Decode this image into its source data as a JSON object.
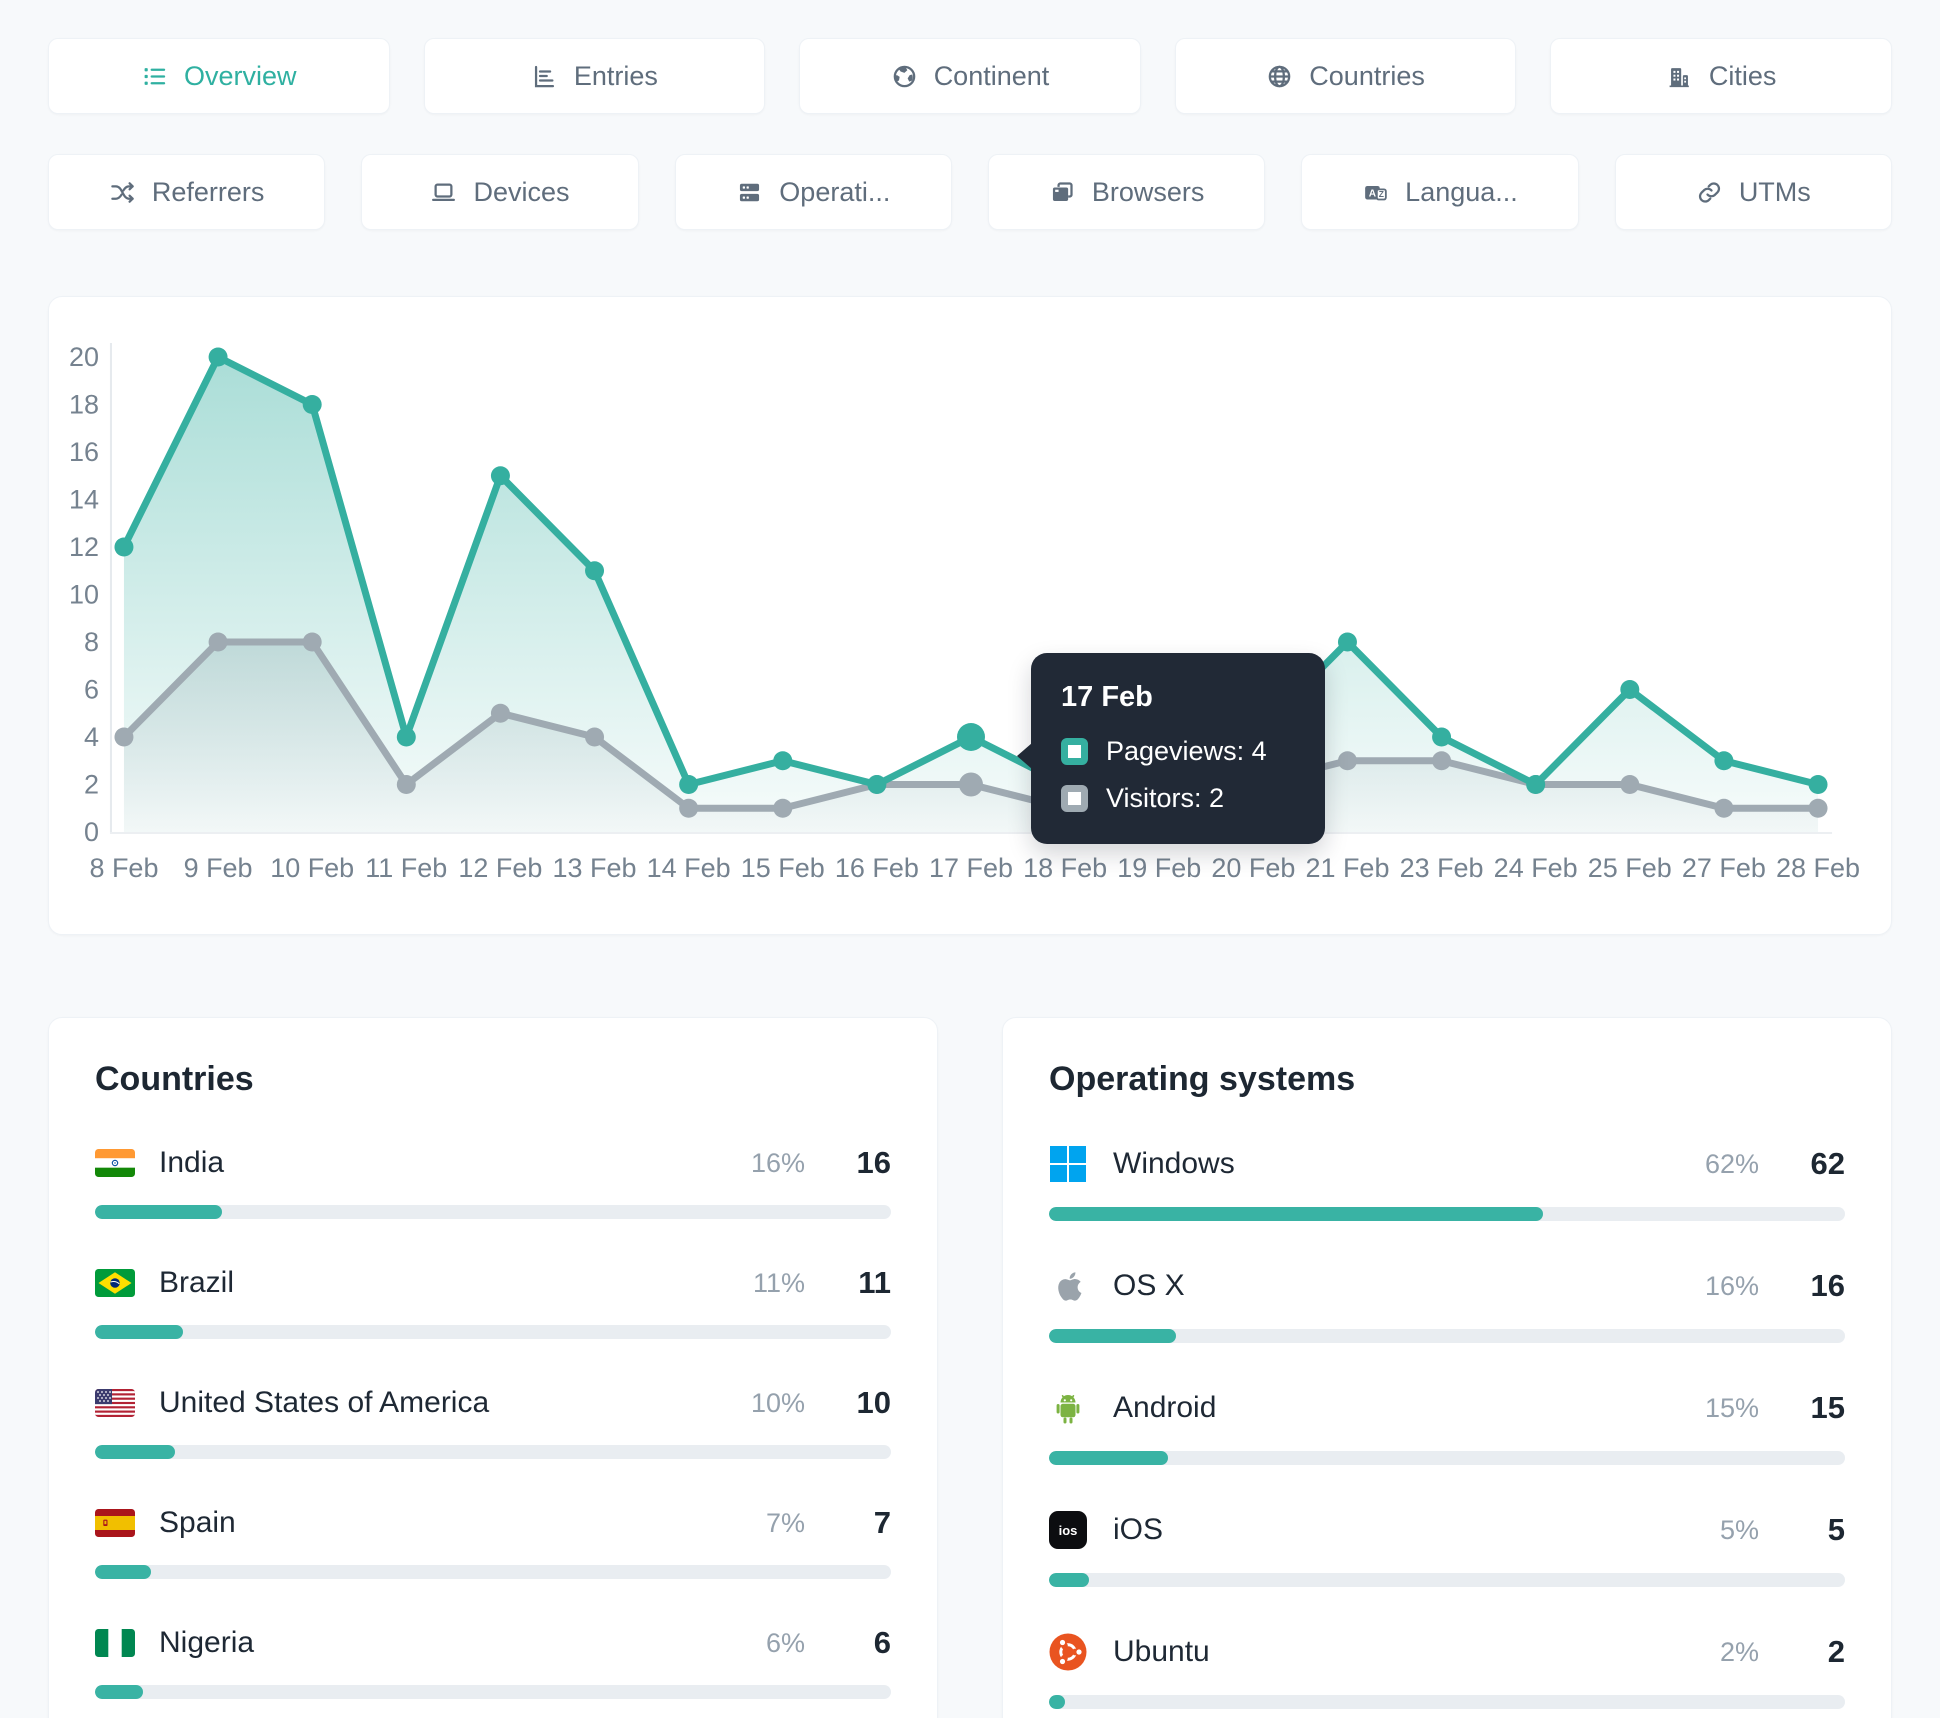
{
  "colors": {
    "accent": "#35afa0",
    "gray_series": "#9faab2",
    "tab_text": "#5f6d7c",
    "active_tab_text": "#2fb0a1",
    "tooltip_bg": "#212936",
    "bar_fill": "#39b3a4",
    "bar_track": "#e9edf1",
    "windows_blue": "#00A4EF",
    "android_green": "#7CB342",
    "ubuntu_orange": "#E95420"
  },
  "tabs_row1": [
    {
      "label": "Overview",
      "icon": "list-icon",
      "active": true
    },
    {
      "label": "Entries",
      "icon": "bar-chart-icon",
      "active": false
    },
    {
      "label": "Continent",
      "icon": "continent-globe-icon",
      "active": false
    },
    {
      "label": "Countries",
      "icon": "globe-icon",
      "active": false
    },
    {
      "label": "Cities",
      "icon": "buildings-icon",
      "active": false
    }
  ],
  "tabs_row2": [
    {
      "label": "Referrers",
      "icon": "shuffle-icon",
      "active": false
    },
    {
      "label": "Devices",
      "icon": "laptop-icon",
      "active": false
    },
    {
      "label": "Operati...",
      "icon": "server-stack-icon",
      "active": false
    },
    {
      "label": "Browsers",
      "icon": "browser-windows-icon",
      "active": false
    },
    {
      "label": "Langua...",
      "icon": "translate-icon",
      "active": false
    },
    {
      "label": "UTMs",
      "icon": "link-icon",
      "active": false
    }
  ],
  "chart_data": {
    "type": "line",
    "x": [
      "8 Feb",
      "9 Feb",
      "10 Feb",
      "11 Feb",
      "12 Feb",
      "13 Feb",
      "14 Feb",
      "15 Feb",
      "16 Feb",
      "17 Feb",
      "18 Feb",
      "19 Feb",
      "20 Feb",
      "21 Feb",
      "23 Feb",
      "24 Feb",
      "25 Feb",
      "27 Feb",
      "28 Feb"
    ],
    "series": [
      {
        "name": "Pageviews",
        "color": "#35afa0",
        "values": [
          12,
          20,
          18,
          4,
          15,
          11,
          2,
          3,
          2,
          4,
          2,
          1,
          4,
          8,
          4,
          2,
          6,
          3,
          2
        ]
      },
      {
        "name": "Visitors",
        "color": "#9faab2",
        "values": [
          4,
          8,
          8,
          2,
          5,
          4,
          1,
          1,
          2,
          2,
          1,
          1,
          2,
          3,
          3,
          2,
          2,
          1,
          1
        ]
      }
    ],
    "ylim": [
      0,
      20
    ],
    "ytick_step": 2,
    "highlight_index": 9,
    "grid": false,
    "legend_position": "none"
  },
  "tooltip": {
    "title": "17 Feb",
    "rows": [
      {
        "text": "Pageviews: 4",
        "color": "#35afa0"
      },
      {
        "text": "Visitors: 2",
        "color": "#9faab2"
      }
    ]
  },
  "countries_panel": {
    "title": "Countries",
    "rows": [
      {
        "name": "India",
        "icon": "flag-india",
        "percent": "16%",
        "value": "16",
        "bar": 16
      },
      {
        "name": "Brazil",
        "icon": "flag-brazil",
        "percent": "11%",
        "value": "11",
        "bar": 11
      },
      {
        "name": "United States of America",
        "icon": "flag-usa",
        "percent": "10%",
        "value": "10",
        "bar": 10
      },
      {
        "name": "Spain",
        "icon": "flag-spain",
        "percent": "7%",
        "value": "7",
        "bar": 7
      },
      {
        "name": "Nigeria",
        "icon": "flag-nigeria",
        "percent": "6%",
        "value": "6",
        "bar": 6
      }
    ]
  },
  "os_panel": {
    "title": "Operating systems",
    "rows": [
      {
        "name": "Windows",
        "icon": "windows-logo",
        "percent": "62%",
        "value": "62",
        "bar": 62
      },
      {
        "name": "OS X",
        "icon": "apple-logo",
        "percent": "16%",
        "value": "16",
        "bar": 16
      },
      {
        "name": "Android",
        "icon": "android-logo",
        "percent": "15%",
        "value": "15",
        "bar": 15
      },
      {
        "name": "iOS",
        "icon": "ios-logo",
        "percent": "5%",
        "value": "5",
        "bar": 5
      },
      {
        "name": "Ubuntu",
        "icon": "ubuntu-logo",
        "percent": "2%",
        "value": "2",
        "bar": 2
      }
    ]
  }
}
